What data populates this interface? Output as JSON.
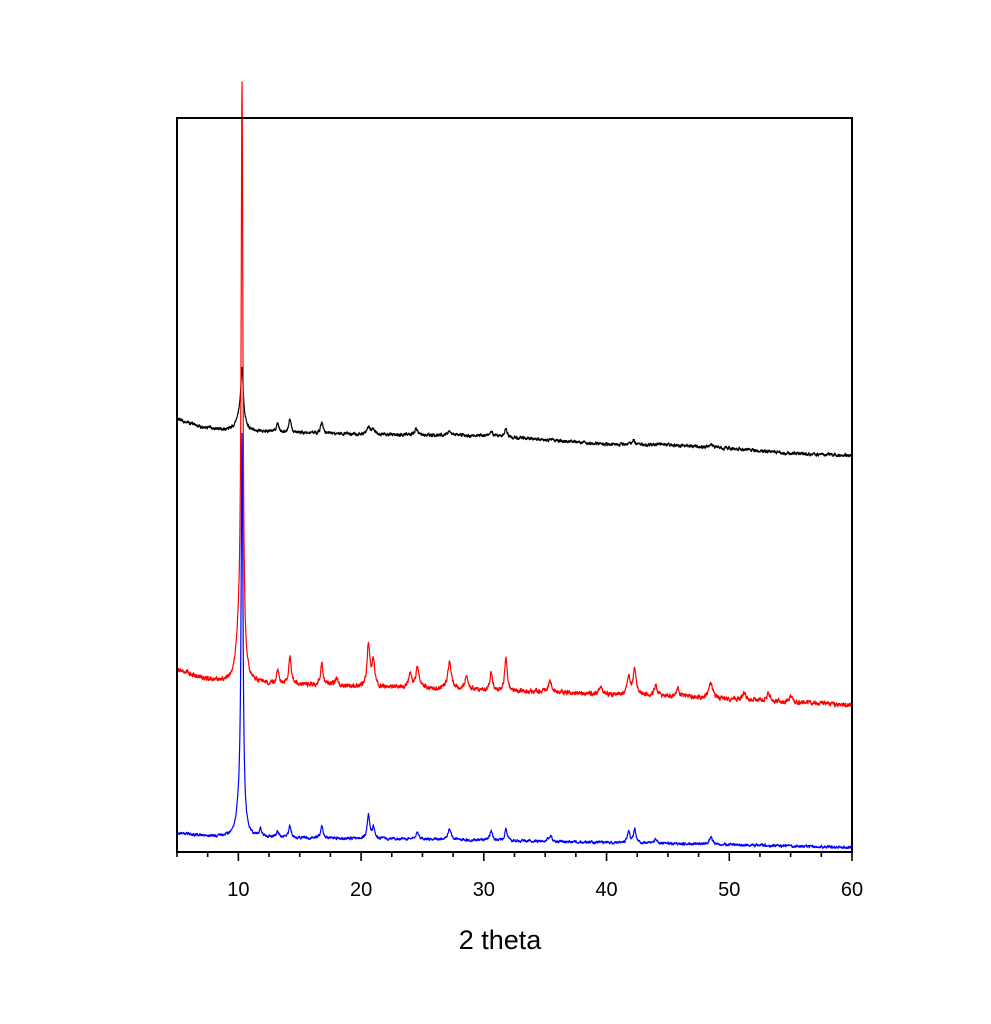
{
  "chart_data": {
    "type": "line",
    "title": "",
    "xlabel": "2 theta",
    "ylabel": "",
    "xlim": [
      5,
      60
    ],
    "ylim": [
      0,
      1
    ],
    "x_major_ticks": [
      10,
      20,
      30,
      40,
      50,
      60
    ],
    "x_tick_labels": [
      "10",
      "20",
      "30",
      "40",
      "50",
      "60"
    ],
    "x_minor_step": 2.5,
    "y_ticks_shown": false,
    "grid": false,
    "legend": "none",
    "series": [
      {
        "color": "#000000",
        "baseline": [
          [
            5,
            0.59
          ],
          [
            7,
            0.579
          ],
          [
            9,
            0.574
          ],
          [
            15,
            0.571
          ],
          [
            20,
            0.569
          ],
          [
            25,
            0.568
          ],
          [
            30,
            0.567
          ],
          [
            35,
            0.562
          ],
          [
            40,
            0.555
          ],
          [
            45,
            0.555
          ],
          [
            50,
            0.55
          ],
          [
            55,
            0.543
          ],
          [
            60,
            0.54
          ]
        ],
        "peaks": [
          {
            "x": 10.3,
            "h": 0.07,
            "w": 0.12
          },
          {
            "x": 10.15,
            "h": 0.02,
            "w": 0.35
          },
          {
            "x": 13.2,
            "h": 0.012,
            "w": 0.12
          },
          {
            "x": 14.2,
            "h": 0.018,
            "w": 0.12
          },
          {
            "x": 16.8,
            "h": 0.015,
            "w": 0.12
          },
          {
            "x": 20.6,
            "h": 0.01,
            "w": 0.15
          },
          {
            "x": 21.0,
            "h": 0.008,
            "w": 0.15
          },
          {
            "x": 24.5,
            "h": 0.008,
            "w": 0.15
          },
          {
            "x": 27.2,
            "h": 0.006,
            "w": 0.15
          },
          {
            "x": 30.6,
            "h": 0.007,
            "w": 0.15
          },
          {
            "x": 31.8,
            "h": 0.012,
            "w": 0.12
          },
          {
            "x": 42.2,
            "h": 0.006,
            "w": 0.15
          },
          {
            "x": 48.5,
            "h": 0.004,
            "w": 0.15
          }
        ],
        "noise": 0.0018
      },
      {
        "color": "#ff0000",
        "baseline": [
          [
            5,
            0.249
          ],
          [
            7,
            0.237
          ],
          [
            9,
            0.23
          ],
          [
            12,
            0.228
          ],
          [
            15,
            0.228
          ],
          [
            20,
            0.225
          ],
          [
            25,
            0.223
          ],
          [
            30,
            0.22
          ],
          [
            35,
            0.218
          ],
          [
            40,
            0.214
          ],
          [
            45,
            0.212
          ],
          [
            50,
            0.208
          ],
          [
            55,
            0.204
          ],
          [
            60,
            0.2
          ]
        ],
        "peaks": [
          {
            "x": 10.3,
            "h": 0.78,
            "w": 0.085
          },
          {
            "x": 10.1,
            "h": 0.06,
            "w": 0.3
          },
          {
            "x": 13.2,
            "h": 0.018,
            "w": 0.12
          },
          {
            "x": 14.2,
            "h": 0.04,
            "w": 0.12
          },
          {
            "x": 16.8,
            "h": 0.03,
            "w": 0.12
          },
          {
            "x": 18.0,
            "h": 0.01,
            "w": 0.15
          },
          {
            "x": 20.6,
            "h": 0.058,
            "w": 0.13
          },
          {
            "x": 21.0,
            "h": 0.035,
            "w": 0.13
          },
          {
            "x": 24.0,
            "h": 0.02,
            "w": 0.15
          },
          {
            "x": 24.6,
            "h": 0.028,
            "w": 0.15
          },
          {
            "x": 27.2,
            "h": 0.035,
            "w": 0.18
          },
          {
            "x": 28.6,
            "h": 0.02,
            "w": 0.15
          },
          {
            "x": 30.6,
            "h": 0.025,
            "w": 0.12
          },
          {
            "x": 31.8,
            "h": 0.045,
            "w": 0.12
          },
          {
            "x": 35.4,
            "h": 0.015,
            "w": 0.15
          },
          {
            "x": 39.5,
            "h": 0.012,
            "w": 0.15
          },
          {
            "x": 41.8,
            "h": 0.025,
            "w": 0.15
          },
          {
            "x": 42.3,
            "h": 0.035,
            "w": 0.15
          },
          {
            "x": 44.0,
            "h": 0.015,
            "w": 0.15
          },
          {
            "x": 45.8,
            "h": 0.012,
            "w": 0.15
          },
          {
            "x": 48.5,
            "h": 0.02,
            "w": 0.2
          },
          {
            "x": 51.2,
            "h": 0.01,
            "w": 0.15
          },
          {
            "x": 53.2,
            "h": 0.01,
            "w": 0.15
          },
          {
            "x": 55.0,
            "h": 0.008,
            "w": 0.15
          }
        ],
        "noise": 0.0025
      },
      {
        "color": "#0000ff",
        "baseline": [
          [
            5,
            0.026
          ],
          [
            7,
            0.022
          ],
          [
            9,
            0.02
          ],
          [
            15,
            0.019
          ],
          [
            20,
            0.018
          ],
          [
            30,
            0.016
          ],
          [
            40,
            0.013
          ],
          [
            50,
            0.01
          ],
          [
            60,
            0.006
          ]
        ],
        "peaks": [
          {
            "x": 10.3,
            "h": 0.53,
            "w": 0.09
          },
          {
            "x": 10.1,
            "h": 0.03,
            "w": 0.3
          },
          {
            "x": 11.8,
            "h": 0.01,
            "w": 0.12
          },
          {
            "x": 13.2,
            "h": 0.008,
            "w": 0.12
          },
          {
            "x": 14.2,
            "h": 0.016,
            "w": 0.12
          },
          {
            "x": 16.8,
            "h": 0.016,
            "w": 0.12
          },
          {
            "x": 20.6,
            "h": 0.032,
            "w": 0.12
          },
          {
            "x": 21.0,
            "h": 0.015,
            "w": 0.12
          },
          {
            "x": 24.6,
            "h": 0.01,
            "w": 0.15
          },
          {
            "x": 27.2,
            "h": 0.016,
            "w": 0.15
          },
          {
            "x": 30.6,
            "h": 0.014,
            "w": 0.12
          },
          {
            "x": 31.8,
            "h": 0.015,
            "w": 0.12
          },
          {
            "x": 35.4,
            "h": 0.008,
            "w": 0.15
          },
          {
            "x": 41.8,
            "h": 0.015,
            "w": 0.12
          },
          {
            "x": 42.3,
            "h": 0.018,
            "w": 0.12
          },
          {
            "x": 44.0,
            "h": 0.006,
            "w": 0.15
          },
          {
            "x": 48.5,
            "h": 0.01,
            "w": 0.15
          }
        ],
        "noise": 0.0015
      }
    ]
  }
}
